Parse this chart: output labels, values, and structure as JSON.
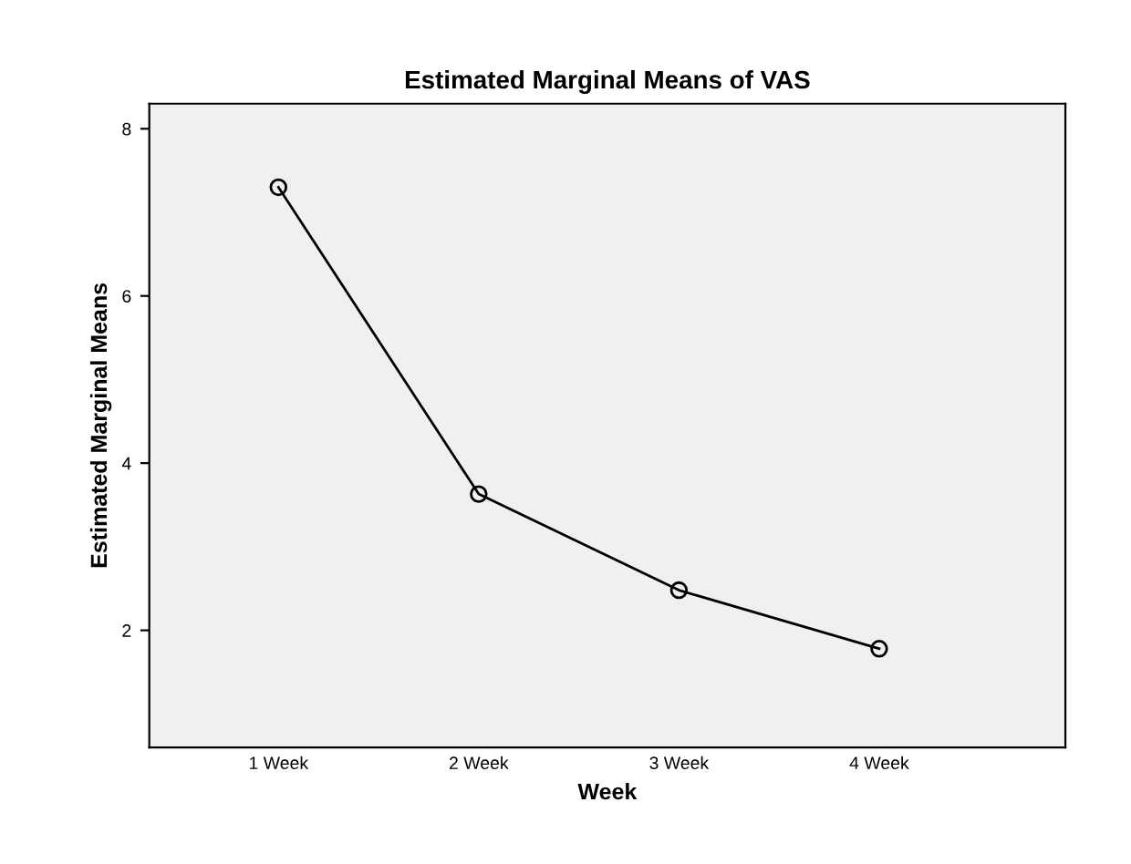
{
  "chart_data": {
    "type": "line",
    "title": "Estimated Marginal Means of VAS",
    "xlabel": "Week",
    "ylabel": "Estimated Marginal Means",
    "categories": [
      "1 Week",
      "2 Week",
      "3 Week",
      "4 Week"
    ],
    "series": [
      {
        "color": "#000000",
        "values": [
          7.3,
          3.63,
          2.48,
          1.78
        ]
      }
    ],
    "ylim": [
      0.6,
      8.3
    ],
    "yticks": [
      2,
      4,
      6,
      8
    ],
    "marker": "circle",
    "line_style": "solid",
    "grid": false,
    "legend": false
  }
}
